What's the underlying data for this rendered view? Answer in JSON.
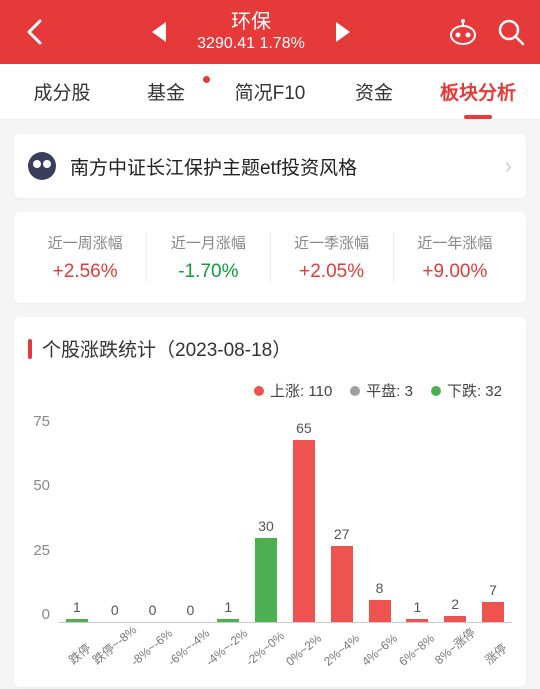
{
  "header": {
    "title": "环保",
    "index_value": "3290.41",
    "change_pct": "1.78%"
  },
  "tabs": [
    {
      "label": "成分股",
      "active": false,
      "dot": false
    },
    {
      "label": "基金",
      "active": false,
      "dot": true
    },
    {
      "label": "简况F10",
      "active": false,
      "dot": false
    },
    {
      "label": "资金",
      "active": false,
      "dot": false
    },
    {
      "label": "板块分析",
      "active": true,
      "dot": false
    }
  ],
  "info_card": {
    "text": "南方中证长江保护主题etf投资风格"
  },
  "metrics": [
    {
      "label": "近一周涨幅",
      "value": "+2.56%",
      "type": "pos"
    },
    {
      "label": "近一月涨幅",
      "value": "-1.70%",
      "type": "neg"
    },
    {
      "label": "近一季涨幅",
      "value": "+2.05%",
      "type": "pos"
    },
    {
      "label": "近一年涨幅",
      "value": "+9.00%",
      "type": "pos"
    }
  ],
  "section": {
    "title_prefix": "个股涨跌统计",
    "date": "（2023-08-18）"
  },
  "legend": {
    "up": {
      "label": "上涨:",
      "count": 110,
      "color": "#ef5350"
    },
    "flat": {
      "label": "平盘:",
      "count": 3,
      "color": "#9e9e9e"
    },
    "down": {
      "label": "下跌:",
      "count": 32,
      "color": "#4caf50"
    }
  },
  "chart": {
    "type": "bar",
    "y_max": 75,
    "y_ticks": [
      75,
      50,
      25,
      0
    ],
    "bar_colors": {
      "up": "#ef5350",
      "flat": "#bdbdbd",
      "down": "#4caf50"
    },
    "bars": [
      {
        "label": "跌停",
        "value": 1,
        "color": "#4caf50"
      },
      {
        "label": "跌停~-8%",
        "value": 0,
        "color": "#4caf50"
      },
      {
        "label": "-8%~-6%",
        "value": 0,
        "color": "#4caf50"
      },
      {
        "label": "-6%~-4%",
        "value": 0,
        "color": "#4caf50"
      },
      {
        "label": "-4%~-2%",
        "value": 1,
        "color": "#4caf50"
      },
      {
        "label": "-2%~0%",
        "value": 30,
        "color": "#4caf50"
      },
      {
        "label": "0%~2%",
        "value": 65,
        "color": "#ef5350"
      },
      {
        "label": "2%~4%",
        "value": 27,
        "color": "#ef5350"
      },
      {
        "label": "4%~6%",
        "value": 8,
        "color": "#ef5350"
      },
      {
        "label": "6%~8%",
        "value": 1,
        "color": "#ef5350"
      },
      {
        "label": "8%~涨停",
        "value": 2,
        "color": "#ef5350"
      },
      {
        "label": "涨停",
        "value": 7,
        "color": "#ef5350"
      }
    ]
  }
}
